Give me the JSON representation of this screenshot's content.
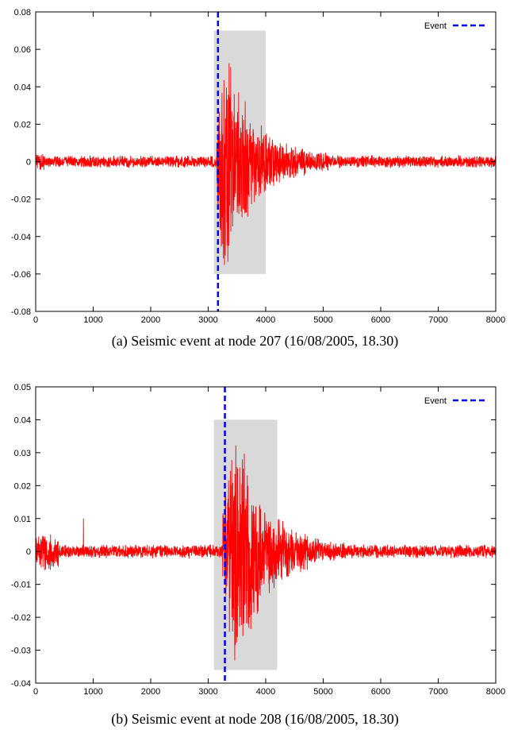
{
  "chart_data": [
    {
      "type": "line",
      "caption": "(a) Seismic event at node 207 (16/08/2005, 18.30)",
      "xlim": [
        0,
        8000
      ],
      "ylim": [
        -0.08,
        0.08
      ],
      "xticks": [
        0,
        1000,
        2000,
        3000,
        4000,
        5000,
        6000,
        7000,
        8000
      ],
      "yticks": [
        -0.08,
        -0.06,
        -0.04,
        -0.02,
        0,
        0.02,
        0.04,
        0.06,
        0.08
      ],
      "ytick_labels": [
        "-0.08",
        "-0.06",
        "-0.04",
        "-0.02",
        "0",
        "0.02",
        "0.04",
        "0.06",
        "0.08"
      ],
      "grid": false,
      "legend": {
        "label": "Event",
        "position": "top-right"
      },
      "event_x": 3170,
      "highlight": {
        "x": [
          3100,
          4000
        ],
        "y": [
          -0.06,
          0.07
        ]
      },
      "signal": {
        "color": "#ff0000",
        "noise_amp": 0.0035,
        "burst_start": 3150,
        "burst_peak_x": 3270,
        "burst_peak_amp": 0.068,
        "burst_decay_end": 4700,
        "tail_amp": 0.006
      },
      "series": [
        {
          "color": "#ff0000",
          "style": "solid"
        },
        {
          "name": "Event",
          "color": "#0000ee",
          "style": "dashed"
        }
      ]
    },
    {
      "type": "line",
      "caption": "(b) Seismic event at node 208 (16/08/2005, 18.30)",
      "xlim": [
        0,
        8000
      ],
      "ylim": [
        -0.04,
        0.05
      ],
      "xticks": [
        0,
        1000,
        2000,
        3000,
        4000,
        5000,
        6000,
        7000,
        8000
      ],
      "yticks": [
        -0.04,
        -0.03,
        -0.02,
        -0.01,
        0,
        0.01,
        0.02,
        0.03,
        0.04,
        0.05
      ],
      "ytick_labels": [
        "-0.04",
        "-0.03",
        "-0.02",
        "-0.01",
        "0",
        "0.01",
        "0.02",
        "0.03",
        "0.04",
        "0.05"
      ],
      "grid": false,
      "legend": {
        "label": "Event",
        "position": "top-right"
      },
      "event_x": 3290,
      "highlight": {
        "x": [
          3100,
          4200
        ],
        "y": [
          -0.036,
          0.04
        ]
      },
      "signal": {
        "color": "#ff0000",
        "noise_amp": 0.0022,
        "early_noise_amp": 0.006,
        "spike_x": 830,
        "spike_y": 0.01,
        "burst_start": 3250,
        "burst_peak_x": 3480,
        "burst_peak_amp": 0.04,
        "burst_decay_end": 5000,
        "tail_amp": 0.003
      },
      "series": [
        {
          "color": "#ff0000",
          "style": "solid"
        },
        {
          "name": "Event",
          "color": "#0000ee",
          "style": "dashed"
        }
      ]
    }
  ]
}
